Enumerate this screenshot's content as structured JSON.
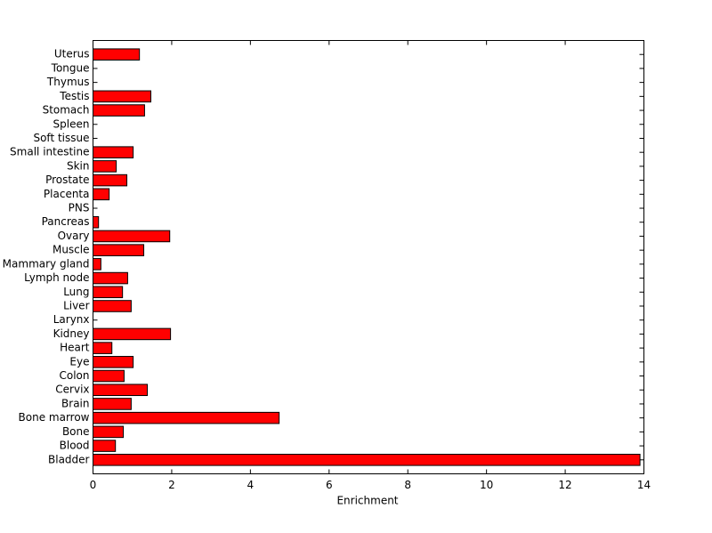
{
  "chart_data": {
    "type": "barh",
    "xlabel": "Enrichment",
    "categories": [
      "Bladder",
      "Blood",
      "Bone",
      "Bone marrow",
      "Brain",
      "Cervix",
      "Colon",
      "Eye",
      "Heart",
      "Kidney",
      "Larynx",
      "Liver",
      "Lung",
      "Lymph node",
      "Mammary gland",
      "Muscle",
      "Ovary",
      "Pancreas",
      "PNS",
      "Placenta",
      "Prostate",
      "Skin",
      "Small intestine",
      "Soft tissue",
      "Spleen",
      "Stomach",
      "Testis",
      "Thymus",
      "Tongue",
      "Uterus"
    ],
    "values": [
      13.9,
      0.57,
      0.77,
      4.73,
      0.97,
      1.38,
      0.79,
      1.02,
      0.48,
      1.97,
      0,
      0.97,
      0.75,
      0.88,
      0.2,
      1.29,
      1.95,
      0.14,
      0,
      0.41,
      0.86,
      0.59,
      1.02,
      0,
      0,
      1.31,
      1.47,
      0,
      0,
      1.18
    ],
    "color": "#ff0000",
    "xlim": [
      0,
      14
    ],
    "xticks": [
      0,
      2,
      4,
      6,
      8,
      10,
      12,
      14
    ]
  }
}
